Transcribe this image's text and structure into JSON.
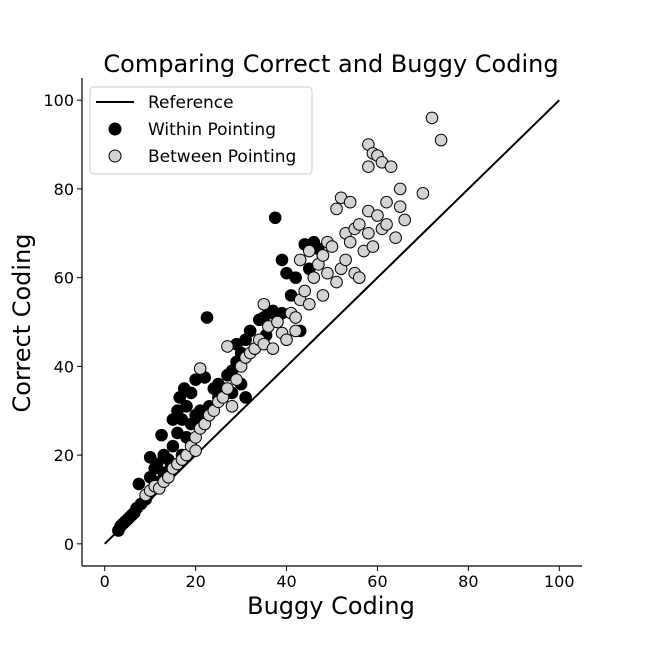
{
  "chart_data": {
    "type": "scatter",
    "title": "Comparing Correct and Buggy Coding",
    "xlabel": "Buggy Coding",
    "ylabel": "Correct Coding",
    "xlim": [
      -5,
      105
    ],
    "ylim": [
      -5,
      105
    ],
    "xticks": [
      0,
      20,
      40,
      60,
      80,
      100
    ],
    "yticks": [
      0,
      20,
      40,
      60,
      80,
      100
    ],
    "grid": false,
    "legend_position": "top-left",
    "reference_line": {
      "name": "Reference",
      "x": [
        0,
        100
      ],
      "y": [
        0,
        100
      ],
      "color": "#000000"
    },
    "series": [
      {
        "name": "Within Pointing",
        "color": "#000000",
        "edge": "#000000",
        "points": [
          [
            3,
            3
          ],
          [
            3.5,
            4
          ],
          [
            4,
            4.5
          ],
          [
            4.5,
            5
          ],
          [
            5,
            5.5
          ],
          [
            5.5,
            6
          ],
          [
            6,
            6.5
          ],
          [
            6.5,
            7
          ],
          [
            7,
            8
          ],
          [
            7.5,
            13.5
          ],
          [
            8,
            9
          ],
          [
            9,
            10
          ],
          [
            9.5,
            11
          ],
          [
            10,
            15
          ],
          [
            10,
            19.5
          ],
          [
            11,
            17
          ],
          [
            11.5,
            18
          ],
          [
            12,
            14
          ],
          [
            12.5,
            24.5
          ],
          [
            13,
            20
          ],
          [
            13,
            16
          ],
          [
            14,
            19
          ],
          [
            14.5,
            17
          ],
          [
            15,
            28
          ],
          [
            15,
            22
          ],
          [
            16,
            25
          ],
          [
            16,
            30
          ],
          [
            16.5,
            33
          ],
          [
            17,
            28
          ],
          [
            17,
            20
          ],
          [
            17.5,
            35
          ],
          [
            18,
            31
          ],
          [
            18,
            24
          ],
          [
            19,
            34
          ],
          [
            19,
            27
          ],
          [
            20,
            29
          ],
          [
            20,
            37
          ],
          [
            21,
            30
          ],
          [
            21.5,
            28
          ],
          [
            22,
            37.5
          ],
          [
            22.5,
            51
          ],
          [
            23,
            31
          ],
          [
            24,
            35
          ],
          [
            25,
            33
          ],
          [
            25,
            36
          ],
          [
            26,
            35
          ],
          [
            27,
            38
          ],
          [
            28,
            39
          ],
          [
            28,
            34
          ],
          [
            29,
            41
          ],
          [
            29,
            45
          ],
          [
            30,
            43
          ],
          [
            30,
            36
          ],
          [
            31,
            46
          ],
          [
            31,
            33
          ],
          [
            32,
            48
          ],
          [
            33,
            44
          ],
          [
            34,
            50.5
          ],
          [
            35,
            51
          ],
          [
            35.5,
            47
          ],
          [
            36,
            52
          ],
          [
            37,
            52.5
          ],
          [
            37.5,
            73.5
          ],
          [
            38,
            51
          ],
          [
            39,
            52
          ],
          [
            39,
            64
          ],
          [
            40,
            61
          ],
          [
            41,
            56
          ],
          [
            42,
            60
          ],
          [
            43,
            48
          ],
          [
            44,
            67.5
          ],
          [
            45,
            62
          ],
          [
            46,
            68
          ],
          [
            47,
            66.5
          ],
          [
            48,
            65
          ]
        ]
      },
      {
        "name": "Between Pointing",
        "color": "#d3d3d3",
        "edge": "#000000",
        "points": [
          [
            9,
            11
          ],
          [
            10,
            12
          ],
          [
            11,
            13
          ],
          [
            12,
            12.5
          ],
          [
            13,
            14
          ],
          [
            14,
            15
          ],
          [
            15,
            17
          ],
          [
            16,
            18
          ],
          [
            17,
            19
          ],
          [
            18,
            20
          ],
          [
            19,
            22
          ],
          [
            20,
            24
          ],
          [
            20,
            21
          ],
          [
            21,
            39.5
          ],
          [
            21,
            26
          ],
          [
            22,
            27
          ],
          [
            23,
            29
          ],
          [
            24,
            30
          ],
          [
            25,
            32
          ],
          [
            26,
            33
          ],
          [
            27,
            44.5
          ],
          [
            27,
            35
          ],
          [
            28,
            31
          ],
          [
            29,
            37
          ],
          [
            30,
            40
          ],
          [
            31,
            42
          ],
          [
            32,
            43
          ],
          [
            33,
            44
          ],
          [
            34,
            46
          ],
          [
            35,
            45
          ],
          [
            35,
            54
          ],
          [
            36,
            49
          ],
          [
            37,
            44
          ],
          [
            38,
            50
          ],
          [
            39,
            47.5
          ],
          [
            40,
            46
          ],
          [
            41,
            52
          ],
          [
            42,
            51
          ],
          [
            42,
            48
          ],
          [
            43,
            55
          ],
          [
            43,
            64
          ],
          [
            44,
            57
          ],
          [
            45,
            54
          ],
          [
            45,
            66
          ],
          [
            46,
            60
          ],
          [
            47,
            63
          ],
          [
            48,
            56
          ],
          [
            48,
            65
          ],
          [
            49,
            61
          ],
          [
            49,
            68
          ],
          [
            50,
            67
          ],
          [
            51,
            75.5
          ],
          [
            51,
            59
          ],
          [
            52,
            62
          ],
          [
            52,
            78
          ],
          [
            53,
            64
          ],
          [
            53,
            70
          ],
          [
            54,
            77
          ],
          [
            54,
            68
          ],
          [
            55,
            71
          ],
          [
            55,
            61
          ],
          [
            56,
            72
          ],
          [
            56,
            60
          ],
          [
            57,
            66
          ],
          [
            58,
            70
          ],
          [
            58,
            75
          ],
          [
            58,
            85
          ],
          [
            58,
            90
          ],
          [
            59,
            67
          ],
          [
            59,
            88
          ],
          [
            60,
            74
          ],
          [
            60,
            87.5
          ],
          [
            61,
            86
          ],
          [
            61,
            71
          ],
          [
            62,
            72
          ],
          [
            62,
            77
          ],
          [
            63,
            85
          ],
          [
            64,
            69
          ],
          [
            65,
            76
          ],
          [
            65,
            80
          ],
          [
            66,
            73
          ],
          [
            70,
            79
          ],
          [
            72,
            96
          ],
          [
            74,
            91
          ]
        ]
      }
    ]
  }
}
